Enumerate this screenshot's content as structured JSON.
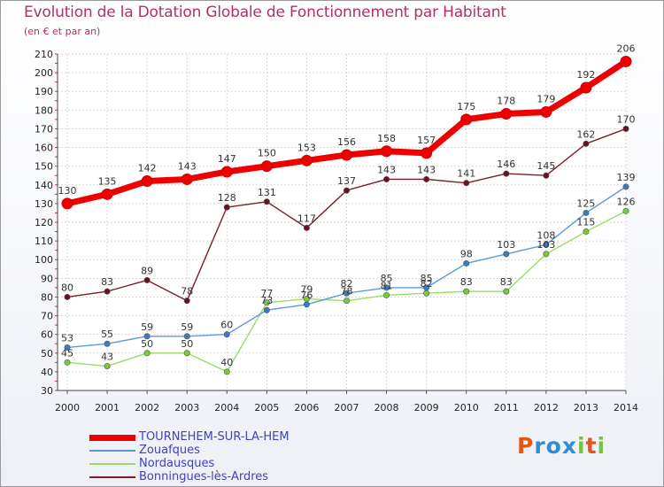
{
  "title": "Evolution de la Dotation Globale de Fonctionnement par Habitant",
  "subtitle": "(en € et par an)",
  "logo_text": "Proxiti",
  "colors": {
    "title": "#b0306a",
    "legend_text": "#4040c0",
    "logo_letters": [
      "#e0561c",
      "#2a8fd6",
      "#2a8fd6",
      "#2a8fd6",
      "#7cc043",
      "#e0561c",
      "#7cc043"
    ]
  },
  "chart_data": {
    "type": "line",
    "title": "Evolution de la Dotation Globale de Fonctionnement par Habitant",
    "subtitle": "(en € et par an)",
    "x": [
      "2000",
      "2001",
      "2002",
      "2003",
      "2004",
      "2005",
      "2006",
      "2007",
      "2008",
      "2009",
      "2010",
      "2011",
      "2012",
      "2013",
      "2014"
    ],
    "ylim": [
      30,
      210
    ],
    "yticks": [
      30,
      40,
      50,
      60,
      70,
      80,
      90,
      100,
      110,
      120,
      130,
      140,
      150,
      160,
      170,
      180,
      190,
      200,
      210
    ],
    "grid": true,
    "legend_position": "bottom-left",
    "series": [
      {
        "name": "TOURNEHEM-SUR-LA-HEM",
        "color": "#ee0000",
        "marker": "#ee0000",
        "emphasis": true,
        "values": [
          130,
          135,
          142,
          143,
          147,
          150,
          153,
          156,
          158,
          157,
          175,
          178,
          179,
          192,
          206
        ],
        "labels": [
          "130",
          "135",
          "142",
          "143",
          "147",
          "150",
          "153",
          "156",
          "158",
          "157",
          "175",
          "178",
          "179",
          "192",
          "206"
        ]
      },
      {
        "name": "Zouafques",
        "color": "#5b9bd5",
        "marker": "#3a7cc4",
        "values": [
          53,
          55,
          59,
          59,
          60,
          73,
          76,
          82,
          85,
          85,
          98,
          103,
          108,
          125,
          139
        ],
        "labels": [
          "53",
          "55",
          "59",
          "59",
          "60",
          "73",
          "76",
          "82",
          "85",
          "85",
          "98",
          "103",
          "108",
          "125",
          "139"
        ]
      },
      {
        "name": "Nordausques",
        "color": "#99dd66",
        "marker": "#77cc33",
        "values": [
          45,
          43,
          50,
          50,
          40,
          77,
          79,
          78,
          81,
          82,
          83,
          83,
          103,
          115,
          126
        ],
        "labels": [
          "45",
          "43",
          "50",
          "50",
          "40",
          "77",
          "79",
          "78",
          "81",
          "82",
          "83",
          "83",
          "103",
          "115",
          "126"
        ]
      },
      {
        "name": "Bonningues-lès-Ardres",
        "color": "#7a1f2a",
        "marker": "#6a1020",
        "values": [
          80,
          83,
          89,
          78,
          128,
          131,
          117,
          137,
          143,
          143,
          141,
          146,
          145,
          162,
          170
        ],
        "labels": [
          "80",
          "83",
          "89",
          "78",
          "128",
          "131",
          "117",
          "137",
          "143",
          "143",
          "141",
          "146",
          "145",
          "162",
          "170"
        ]
      }
    ]
  }
}
